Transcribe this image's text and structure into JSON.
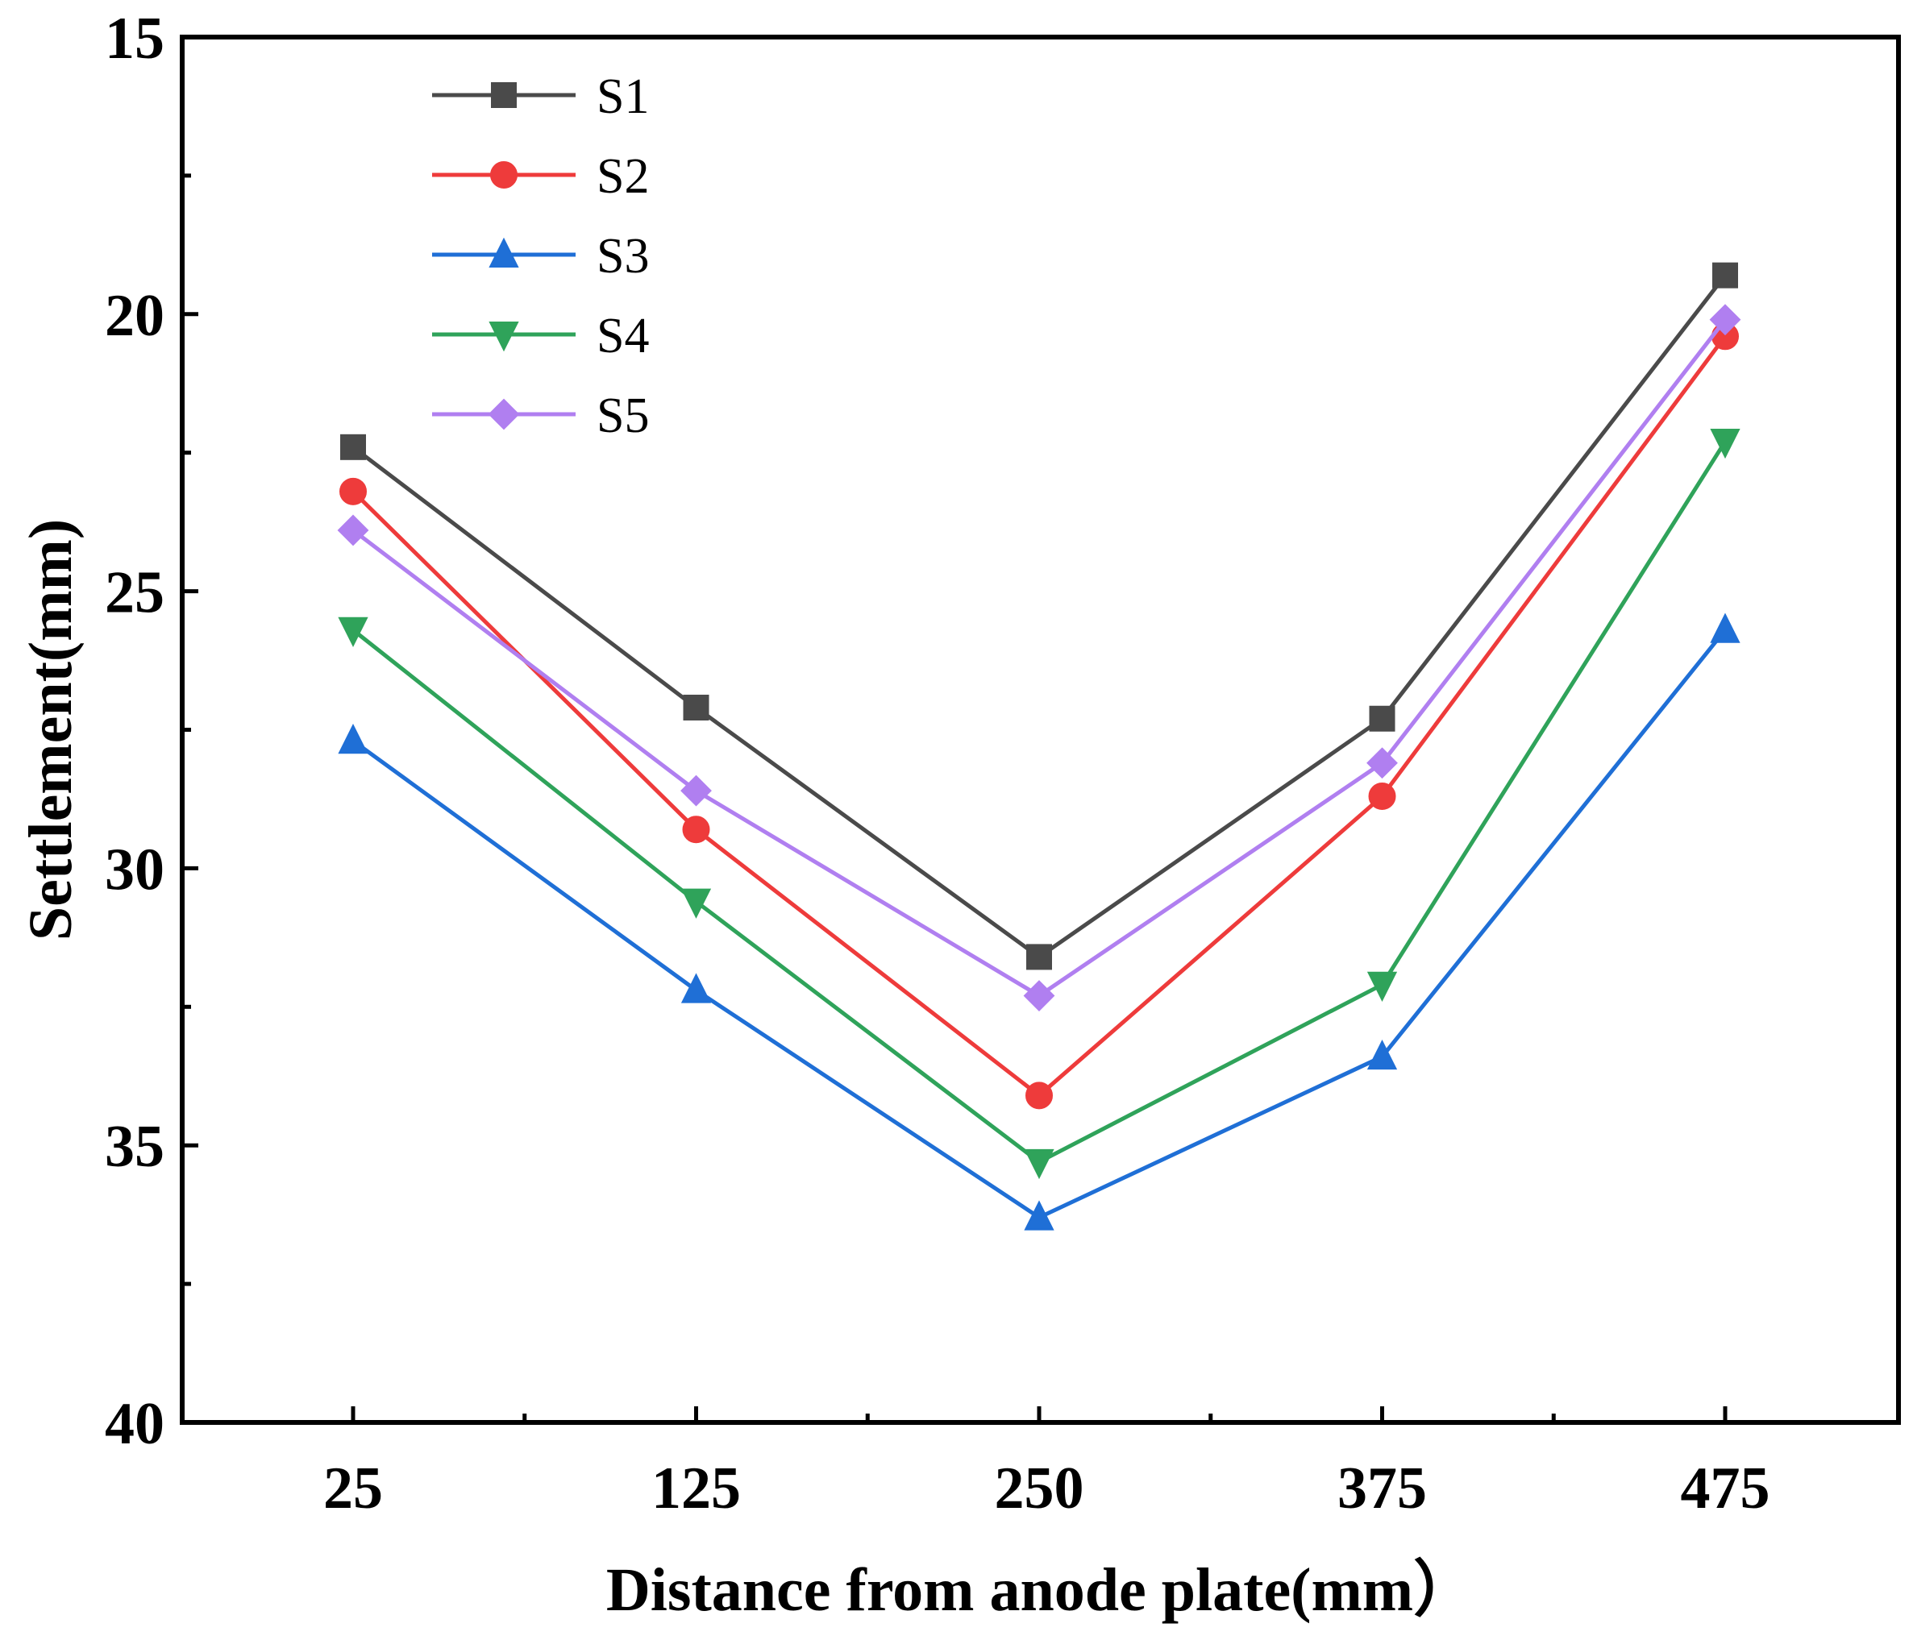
{
  "chart_data": {
    "type": "line",
    "x_categories": [
      "25",
      "125",
      "250",
      "375",
      "475"
    ],
    "xlabel": "Distance from anode plate(mm）",
    "ylabel": "Settlement(mm)",
    "ylim": [
      15,
      40
    ],
    "y_inverted": true,
    "y_major_ticks": [
      15,
      20,
      25,
      30,
      35,
      40
    ],
    "y_minor_ticks": [
      17.5,
      22.5,
      27.5,
      32.5,
      37.5
    ],
    "grid": false,
    "legend_position": "top-left",
    "series": [
      {
        "name": "S1",
        "color": "#4a4a4a",
        "marker": "square",
        "values": [
          22.4,
          27.1,
          31.6,
          27.3,
          19.3
        ]
      },
      {
        "name": "S2",
        "color": "#ee3b3b",
        "marker": "circle",
        "values": [
          23.2,
          29.3,
          34.1,
          28.7,
          20.4
        ]
      },
      {
        "name": "S3",
        "color": "#1f6fd6",
        "marker": "triangle-up",
        "values": [
          27.7,
          32.2,
          36.3,
          33.4,
          25.7
        ]
      },
      {
        "name": "S4",
        "color": "#2fa35a",
        "marker": "triangle-down",
        "values": [
          25.7,
          30.6,
          35.3,
          32.1,
          22.3
        ]
      },
      {
        "name": "S5",
        "color": "#b07ff0",
        "marker": "diamond",
        "values": [
          23.9,
          28.6,
          32.3,
          28.1,
          20.1
        ]
      }
    ]
  }
}
